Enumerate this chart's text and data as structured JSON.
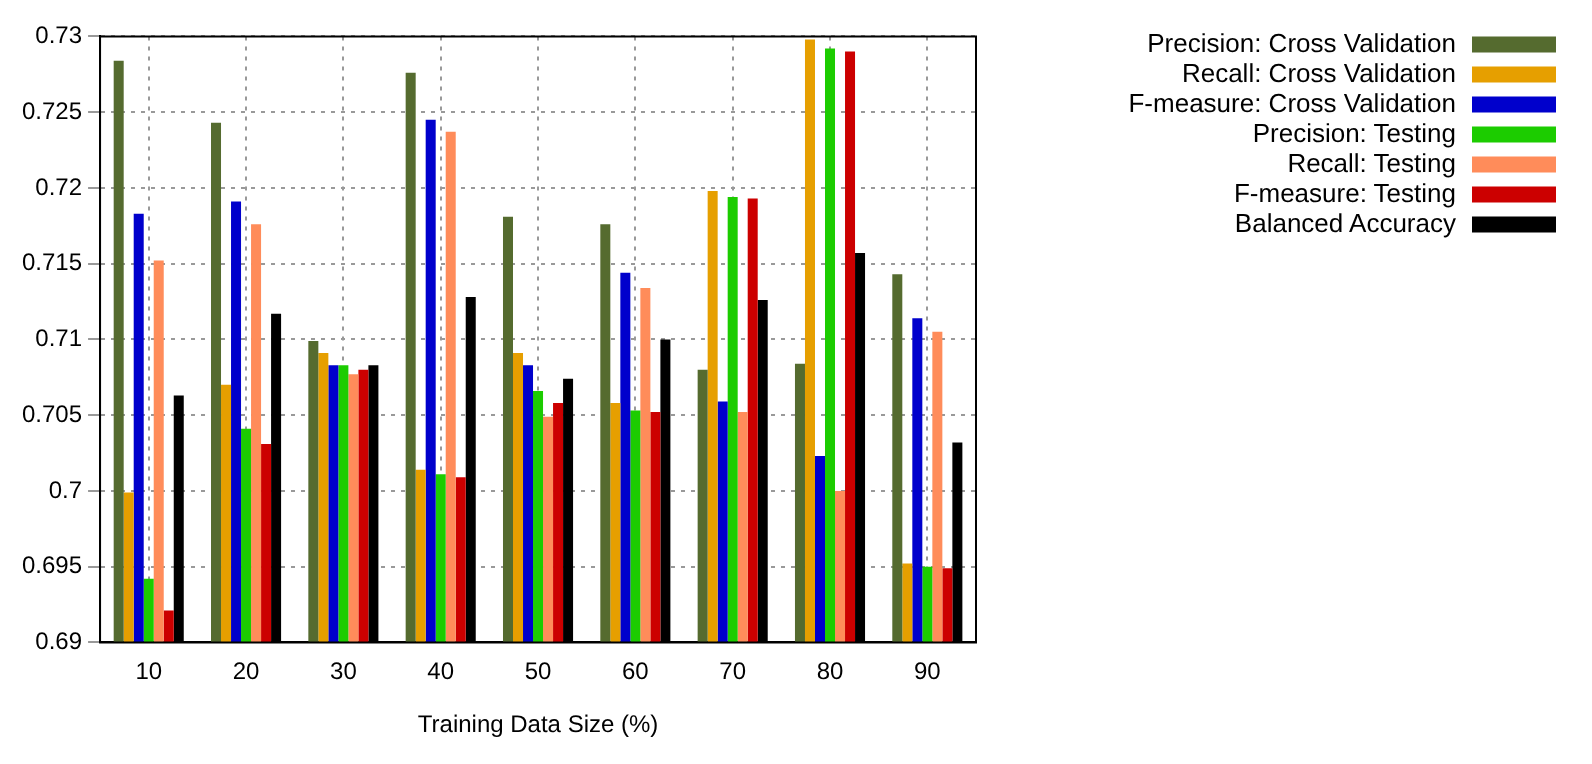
{
  "chart_data": {
    "type": "bar",
    "xlabel": "Training Data Size (%)",
    "categories": [
      "10",
      "20",
      "30",
      "40",
      "50",
      "60",
      "70",
      "80",
      "90"
    ],
    "series": [
      {
        "name": "Precision: Cross Validation",
        "color": "#556b2f",
        "values": [
          0.7284,
          0.7243,
          0.7099,
          0.7276,
          0.7181,
          0.7176,
          0.708,
          0.7084,
          0.7143
        ]
      },
      {
        "name": "Recall: Cross Validation",
        "color": "#e69f00",
        "values": [
          0.6999,
          0.707,
          0.7091,
          0.7014,
          0.7091,
          0.7058,
          0.7198,
          0.7298,
          0.6952
        ]
      },
      {
        "name": "F-measure: Cross Validation",
        "color": "#0000cc",
        "values": [
          0.7183,
          0.7191,
          0.7083,
          0.7245,
          0.7083,
          0.7144,
          0.7059,
          0.7023,
          0.7114
        ]
      },
      {
        "name": "Precision: Testing",
        "color": "#1ccc00",
        "values": [
          0.6942,
          0.7041,
          0.7083,
          0.7011,
          0.7066,
          0.7053,
          0.7194,
          0.7292,
          0.695
        ]
      },
      {
        "name": "Recall: Testing",
        "color": "#ff8c5a",
        "values": [
          0.7152,
          0.7176,
          0.7077,
          0.7237,
          0.7049,
          0.7134,
          0.7052,
          0.7,
          0.7105
        ]
      },
      {
        "name": "F-measure: Testing",
        "color": "#cc0000",
        "values": [
          0.6921,
          0.7031,
          0.708,
          0.7009,
          0.7058,
          0.7052,
          0.7193,
          0.729,
          0.6949
        ]
      },
      {
        "name": "Balanced Accuracy",
        "color": "#000000",
        "values": [
          0.7063,
          0.7117,
          0.7083,
          0.7128,
          0.7074,
          0.71,
          0.7126,
          0.7157,
          0.7032
        ]
      }
    ],
    "ylim": [
      0.69,
      0.73
    ],
    "yticks": [
      0.69,
      0.695,
      0.7,
      0.705,
      0.71,
      0.715,
      0.72,
      0.725,
      0.73
    ],
    "grid": true,
    "legend": "top right"
  }
}
